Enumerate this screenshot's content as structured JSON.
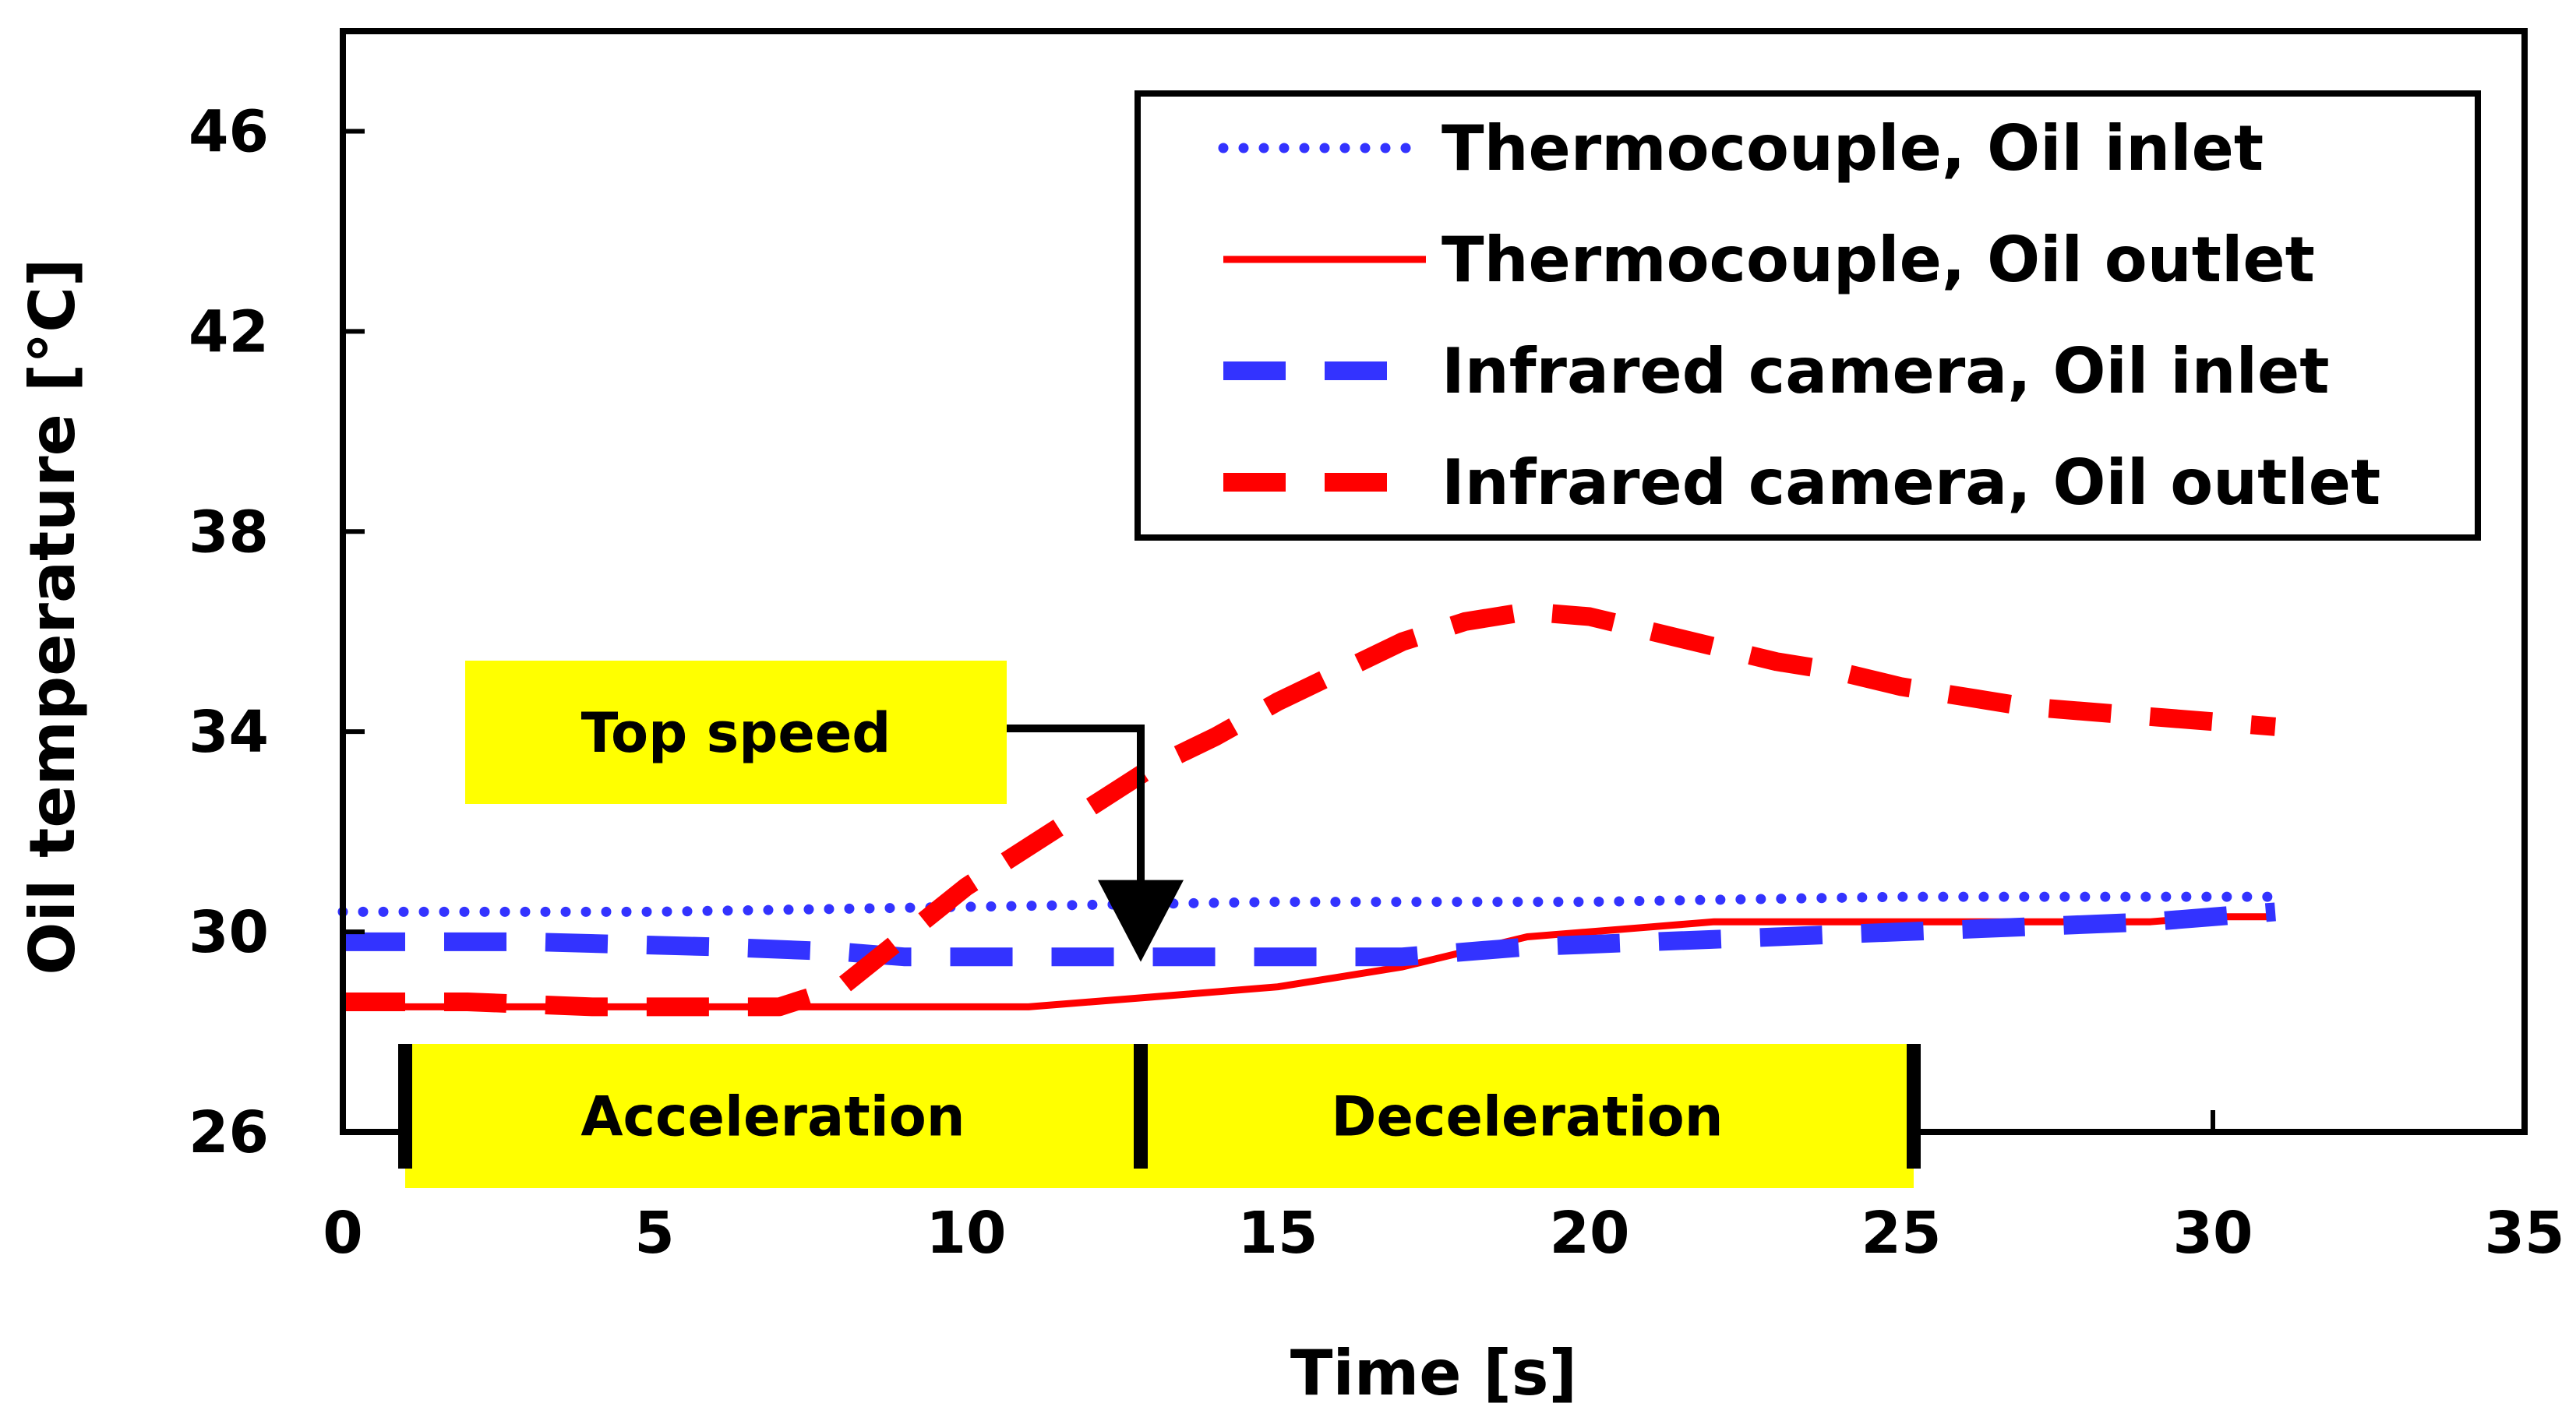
{
  "chart_data": {
    "type": "line",
    "xlabel": "Time [s]",
    "ylabel": "Oil temperature [°C]",
    "xlim": [
      0,
      35
    ],
    "ylim": [
      26,
      48
    ],
    "xticks": [
      0,
      5,
      10,
      15,
      20,
      25,
      30,
      35
    ],
    "yticks": [
      26,
      30,
      34,
      38,
      42,
      46
    ],
    "legend_position": "top-right",
    "series": [
      {
        "name": "Thermocouple, Oil inlet",
        "color": "#3333FF",
        "style": "dotted",
        "x": [
          0,
          5,
          10,
          15,
          20,
          25,
          31
        ],
        "y": [
          30.4,
          30.4,
          30.5,
          30.6,
          30.6,
          30.7,
          30.7
        ]
      },
      {
        "name": "Thermocouple, Oil outlet",
        "color": "#FF0000",
        "style": "solid",
        "x": [
          0,
          5,
          10,
          11,
          12,
          13,
          14,
          15,
          16,
          17,
          18,
          19,
          20,
          21,
          22,
          23,
          24,
          25,
          26,
          27,
          28,
          29,
          30,
          31
        ],
        "y": [
          28.5,
          28.5,
          28.5,
          28.5,
          28.6,
          28.7,
          28.8,
          28.9,
          29.1,
          29.3,
          29.6,
          29.9,
          30.0,
          30.1,
          30.2,
          30.2,
          30.2,
          30.2,
          30.2,
          30.2,
          30.2,
          30.2,
          30.3,
          30.3
        ]
      },
      {
        "name": "Infrared camera, Oil inlet",
        "color": "#3333FF",
        "style": "dashed",
        "x": [
          0,
          3,
          6,
          8,
          9,
          10,
          12,
          13,
          15,
          17,
          19,
          21,
          23,
          25,
          27,
          29,
          31
        ],
        "y": [
          29.8,
          29.8,
          29.7,
          29.6,
          29.5,
          29.5,
          29.5,
          29.5,
          29.5,
          29.5,
          29.7,
          29.8,
          29.9,
          30.0,
          30.1,
          30.2,
          30.4
        ]
      },
      {
        "name": "Infrared camera, Oil outlet",
        "color": "#FF0000",
        "style": "dashed",
        "x": [
          0,
          2,
          4,
          6,
          7,
          7.5,
          8,
          8.5,
          9,
          9.5,
          10,
          10.5,
          11,
          11.5,
          12,
          12.5,
          13,
          13.5,
          14,
          15,
          16,
          17,
          18,
          19,
          20,
          21,
          22,
          23,
          24,
          25,
          26,
          27,
          28,
          29,
          30,
          31
        ],
        "y": [
          28.6,
          28.6,
          28.5,
          28.5,
          28.5,
          28.7,
          28.9,
          29.4,
          29.9,
          30.4,
          30.9,
          31.3,
          31.7,
          32.1,
          32.5,
          32.9,
          33.3,
          33.6,
          33.9,
          34.6,
          35.2,
          35.8,
          36.2,
          36.4,
          36.3,
          36.0,
          35.7,
          35.4,
          35.2,
          34.9,
          34.7,
          34.5,
          34.4,
          34.3,
          34.2,
          34.1
        ]
      }
    ],
    "annotations": {
      "top_speed": {
        "label": "Top speed",
        "x": 12.8,
        "y": 29.4
      },
      "phases": [
        {
          "label": "Acceleration",
          "start": 1,
          "end": 12.8
        },
        {
          "label": "Deceleration",
          "start": 12.8,
          "end": 25.2
        }
      ],
      "highlight_color": "#FFFF00"
    }
  }
}
